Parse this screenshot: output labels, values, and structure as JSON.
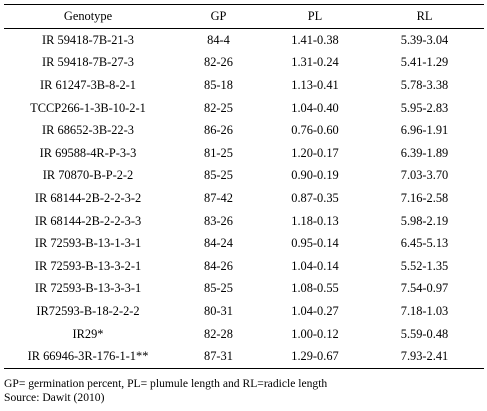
{
  "table": {
    "headers": [
      "Genotype",
      "GP",
      "PL",
      "RL"
    ],
    "rows": [
      [
        "IR 59418-7B-21-3",
        "84-4",
        "1.41-0.38",
        "5.39-3.04"
      ],
      [
        "IR 59418-7B-27-3",
        "82-26",
        "1.31-0.24",
        "5.41-1.29"
      ],
      [
        "IR 61247-3B-8-2-1",
        "85-18",
        "1.13-0.41",
        "5.78-3.38"
      ],
      [
        "TCCP266-1-3B-10-2-1",
        "82-25",
        "1.04-0.40",
        "5.95-2.83"
      ],
      [
        "IR 68652-3B-22-3",
        "86-26",
        "0.76-0.60",
        "6.96-1.91"
      ],
      [
        "IR 69588-4R-P-3-3",
        "81-25",
        "1.20-0.17",
        "6.39-1.89"
      ],
      [
        "IR 70870-B-P-2-2",
        "85-25",
        "0.90-0.19",
        "7.03-3.70"
      ],
      [
        "IR 68144-2B-2-2-3-2",
        "87-42",
        "0.87-0.35",
        "7.16-2.58"
      ],
      [
        "IR 68144-2B-2-2-3-3",
        "83-26",
        "1.18-0.13",
        "5.98-2.19"
      ],
      [
        "IR 72593-B-13-1-3-1",
        "84-24",
        "0.95-0.14",
        "6.45-5.13"
      ],
      [
        "IR 72593-B-13-3-2-1",
        "84-26",
        "1.04-0.14",
        "5.52-1.35"
      ],
      [
        "IR 72593-B-13-3-3-1",
        "85-25",
        "1.08-0.55",
        "7.54-0.97"
      ],
      [
        "IR72593-B-18-2-2-2",
        "80-31",
        "1.04-0.27",
        "7.18-1.03"
      ],
      [
        "IR29*",
        "82-28",
        "1.00-0.12",
        "5.59-0.48"
      ],
      [
        "IR 66946-3R-176-1-1**",
        "87-31",
        "1.29-0.67",
        "7.93-2.41"
      ]
    ]
  },
  "footnote": "GP= germination percent, PL= plumule length and RL=radicle length",
  "source": "Source: Dawit (2010)"
}
